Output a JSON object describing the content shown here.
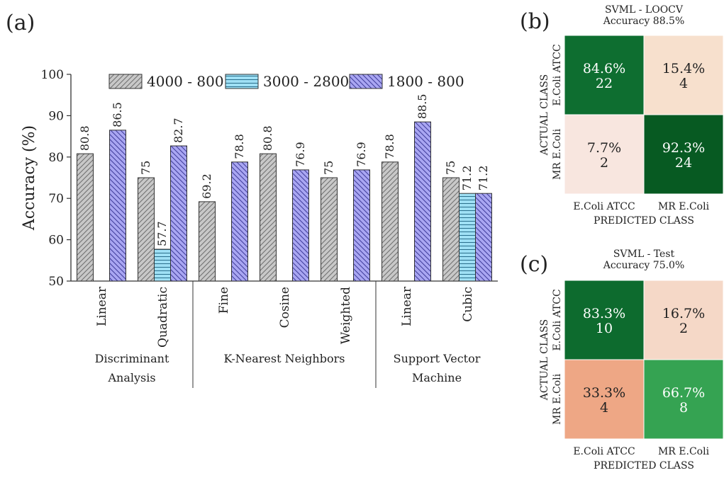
{
  "panel_labels": {
    "a": "(a)",
    "b": "(b)",
    "c": "(c)"
  },
  "chart_data": [
    {
      "type": "bar",
      "ylabel": "Accuracy (%)",
      "ylim": [
        50,
        100
      ],
      "yticks": [
        "50",
        "60",
        "70",
        "80",
        "90",
        "100"
      ],
      "legend_position": "top",
      "categories": [
        "Linear",
        "Quadratic",
        "Fine",
        "Cosine",
        "Weighted",
        "Linear",
        "Cubic"
      ],
      "groups": [
        {
          "line1": "Discriminant",
          "line2": "Analysis",
          "count": 2
        },
        {
          "line1": "K-Nearest Neighbors",
          "line2": "",
          "count": 3
        },
        {
          "line1": "Support Vector",
          "line2": "Machine",
          "count": 2
        }
      ],
      "series": [
        {
          "name": "4000 - 800",
          "color": "#c8c8c8",
          "pattern": "diag-up",
          "values": [
            80.8,
            75,
            69.2,
            80.8,
            75,
            78.8,
            75
          ],
          "labels": [
            "80.8",
            "75",
            "69.2",
            "80.8",
            "75",
            "78.8",
            "75"
          ]
        },
        {
          "name": "3000 - 2800",
          "color": "#9fe0f5",
          "pattern": "horizontal",
          "values": [
            null,
            57.7,
            null,
            null,
            null,
            null,
            71.2
          ],
          "labels": [
            "",
            "57.7",
            "",
            "",
            "",
            "",
            "71.2"
          ]
        },
        {
          "name": "1800 - 800",
          "color": "#a9a6f2",
          "pattern": "diag-down",
          "values": [
            86.5,
            82.7,
            78.8,
            76.9,
            76.9,
            88.5,
            71.2
          ],
          "labels": [
            "86.5",
            "82.7",
            "78.8",
            "76.9",
            "76.9",
            "88.5",
            "71.2"
          ]
        }
      ]
    },
    {
      "type": "heatmap",
      "title": "SVML - LOOCV",
      "subtitle": "Accuracy 88.5%",
      "xlabel": "PREDICTED CLASS",
      "ylabel": "ACTUAL CLASS",
      "x_categories": [
        "E.Coli ATCC",
        "MR E.Coli"
      ],
      "y_categories": [
        "E.Coli ATCC",
        "MR E.Coli"
      ],
      "cells": [
        [
          {
            "pct": "84.6%",
            "count": "22",
            "color": "#0e6e30",
            "text_color": "#ffffff"
          },
          {
            "pct": "15.4%",
            "count": "4",
            "color": "#f7e0cd",
            "text_color": "#222222"
          }
        ],
        [
          {
            "pct": "7.7%",
            "count": "2",
            "color": "#f8e6df",
            "text_color": "#222222"
          },
          {
            "pct": "92.3%",
            "count": "24",
            "color": "#075a22",
            "text_color": "#ffffff"
          }
        ]
      ]
    },
    {
      "type": "heatmap",
      "title": "SVML - Test",
      "subtitle": "Accuracy 75.0%",
      "xlabel": "PREDICTED CLASS",
      "ylabel": "ACTUAL CLASS",
      "x_categories": [
        "E.Coli ATCC",
        "MR E.Coli"
      ],
      "y_categories": [
        "E.Coli ATCC",
        "MR E.Coli"
      ],
      "cells": [
        [
          {
            "pct": "83.3%",
            "count": "10",
            "color": "#0d6b2e",
            "text_color": "#ffffff"
          },
          {
            "pct": "16.7%",
            "count": "2",
            "color": "#f5d8c7",
            "text_color": "#222222"
          }
        ],
        [
          {
            "pct": "33.3%",
            "count": "4",
            "color": "#eea785",
            "text_color": "#222222"
          },
          {
            "pct": "66.7%",
            "count": "8",
            "color": "#35a352",
            "text_color": "#ffffff"
          }
        ]
      ]
    }
  ]
}
